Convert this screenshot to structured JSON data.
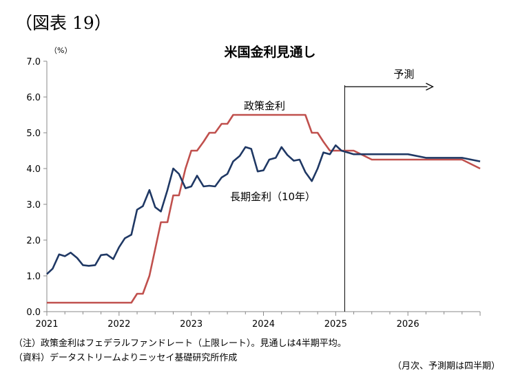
{
  "figure_label": "（図表 19）",
  "notes": {
    "note1": "（注）政策金利はフェデラルファンドレート（上限レート）。見通しは4半期平均。",
    "note2": "（資料）データストリームよりニッセイ基礎研究所作成",
    "note3": "（月次、予測期は四半期）"
  },
  "chart_data": {
    "type": "line",
    "title": "米国金利見通し",
    "ylabel": "（%）",
    "xlabel": "",
    "xlim": [
      2021.0,
      2027.0
    ],
    "ylim": [
      0,
      7
    ],
    "yticks": [
      "0.0",
      "1.0",
      "2.0",
      "3.0",
      "4.0",
      "5.0",
      "6.0",
      "7.0"
    ],
    "xticks": [
      {
        "value": 2021,
        "label": "2021"
      },
      {
        "value": 2022,
        "label": "2022"
      },
      {
        "value": 2023,
        "label": "2023"
      },
      {
        "value": 2024,
        "label": "2024"
      },
      {
        "value": 2025,
        "label": "2025"
      },
      {
        "value": 2026,
        "label": "2026"
      }
    ],
    "forecast_start": 2025.125,
    "forecast_label": "予測",
    "grid": false,
    "series": [
      {
        "name": "政策金利",
        "color": "#c0504d",
        "points": [
          [
            2021.0,
            0.25
          ],
          [
            2022.17,
            0.25
          ],
          [
            2022.25,
            0.5
          ],
          [
            2022.33,
            0.5
          ],
          [
            2022.42,
            1.0
          ],
          [
            2022.5,
            1.75
          ],
          [
            2022.58,
            2.5
          ],
          [
            2022.67,
            2.5
          ],
          [
            2022.75,
            3.25
          ],
          [
            2022.83,
            3.25
          ],
          [
            2022.92,
            4.0
          ],
          [
            2023.0,
            4.5
          ],
          [
            2023.08,
            4.5
          ],
          [
            2023.17,
            4.75
          ],
          [
            2023.25,
            5.0
          ],
          [
            2023.33,
            5.0
          ],
          [
            2023.42,
            5.25
          ],
          [
            2023.5,
            5.25
          ],
          [
            2023.58,
            5.5
          ],
          [
            2024.58,
            5.5
          ],
          [
            2024.67,
            5.0
          ],
          [
            2024.75,
            5.0
          ],
          [
            2024.83,
            4.75
          ],
          [
            2024.92,
            4.5
          ],
          [
            2025.25,
            4.5
          ],
          [
            2025.5,
            4.25
          ],
          [
            2026.75,
            4.25
          ],
          [
            2027.0,
            4.0
          ]
        ]
      },
      {
        "name": "長期金利（10年）",
        "color": "#1f3864",
        "points": [
          [
            2021.0,
            1.05
          ],
          [
            2021.08,
            1.2
          ],
          [
            2021.17,
            1.6
          ],
          [
            2021.25,
            1.55
          ],
          [
            2021.33,
            1.65
          ],
          [
            2021.42,
            1.5
          ],
          [
            2021.5,
            1.3
          ],
          [
            2021.58,
            1.28
          ],
          [
            2021.67,
            1.3
          ],
          [
            2021.75,
            1.58
          ],
          [
            2021.83,
            1.6
          ],
          [
            2021.92,
            1.47
          ],
          [
            2022.0,
            1.8
          ],
          [
            2022.08,
            2.05
          ],
          [
            2022.17,
            2.15
          ],
          [
            2022.25,
            2.85
          ],
          [
            2022.33,
            2.95
          ],
          [
            2022.42,
            3.4
          ],
          [
            2022.5,
            2.92
          ],
          [
            2022.58,
            2.8
          ],
          [
            2022.67,
            3.4
          ],
          [
            2022.75,
            4.0
          ],
          [
            2022.83,
            3.85
          ],
          [
            2022.92,
            3.45
          ],
          [
            2023.0,
            3.5
          ],
          [
            2023.08,
            3.8
          ],
          [
            2023.17,
            3.5
          ],
          [
            2023.25,
            3.52
          ],
          [
            2023.33,
            3.5
          ],
          [
            2023.42,
            3.75
          ],
          [
            2023.5,
            3.85
          ],
          [
            2023.58,
            4.2
          ],
          [
            2023.67,
            4.35
          ],
          [
            2023.75,
            4.6
          ],
          [
            2023.83,
            4.55
          ],
          [
            2023.92,
            3.92
          ],
          [
            2024.0,
            3.95
          ],
          [
            2024.08,
            4.25
          ],
          [
            2024.17,
            4.3
          ],
          [
            2024.25,
            4.6
          ],
          [
            2024.33,
            4.38
          ],
          [
            2024.42,
            4.22
          ],
          [
            2024.5,
            4.25
          ],
          [
            2024.58,
            3.9
          ],
          [
            2024.67,
            3.65
          ],
          [
            2024.75,
            4.0
          ],
          [
            2024.83,
            4.45
          ],
          [
            2024.92,
            4.4
          ],
          [
            2025.0,
            4.65
          ],
          [
            2025.08,
            4.5
          ],
          [
            2025.25,
            4.4
          ],
          [
            2025.5,
            4.4
          ],
          [
            2025.75,
            4.4
          ],
          [
            2026.0,
            4.4
          ],
          [
            2026.25,
            4.3
          ],
          [
            2026.5,
            4.3
          ],
          [
            2026.75,
            4.3
          ],
          [
            2027.0,
            4.2
          ]
        ]
      }
    ]
  }
}
